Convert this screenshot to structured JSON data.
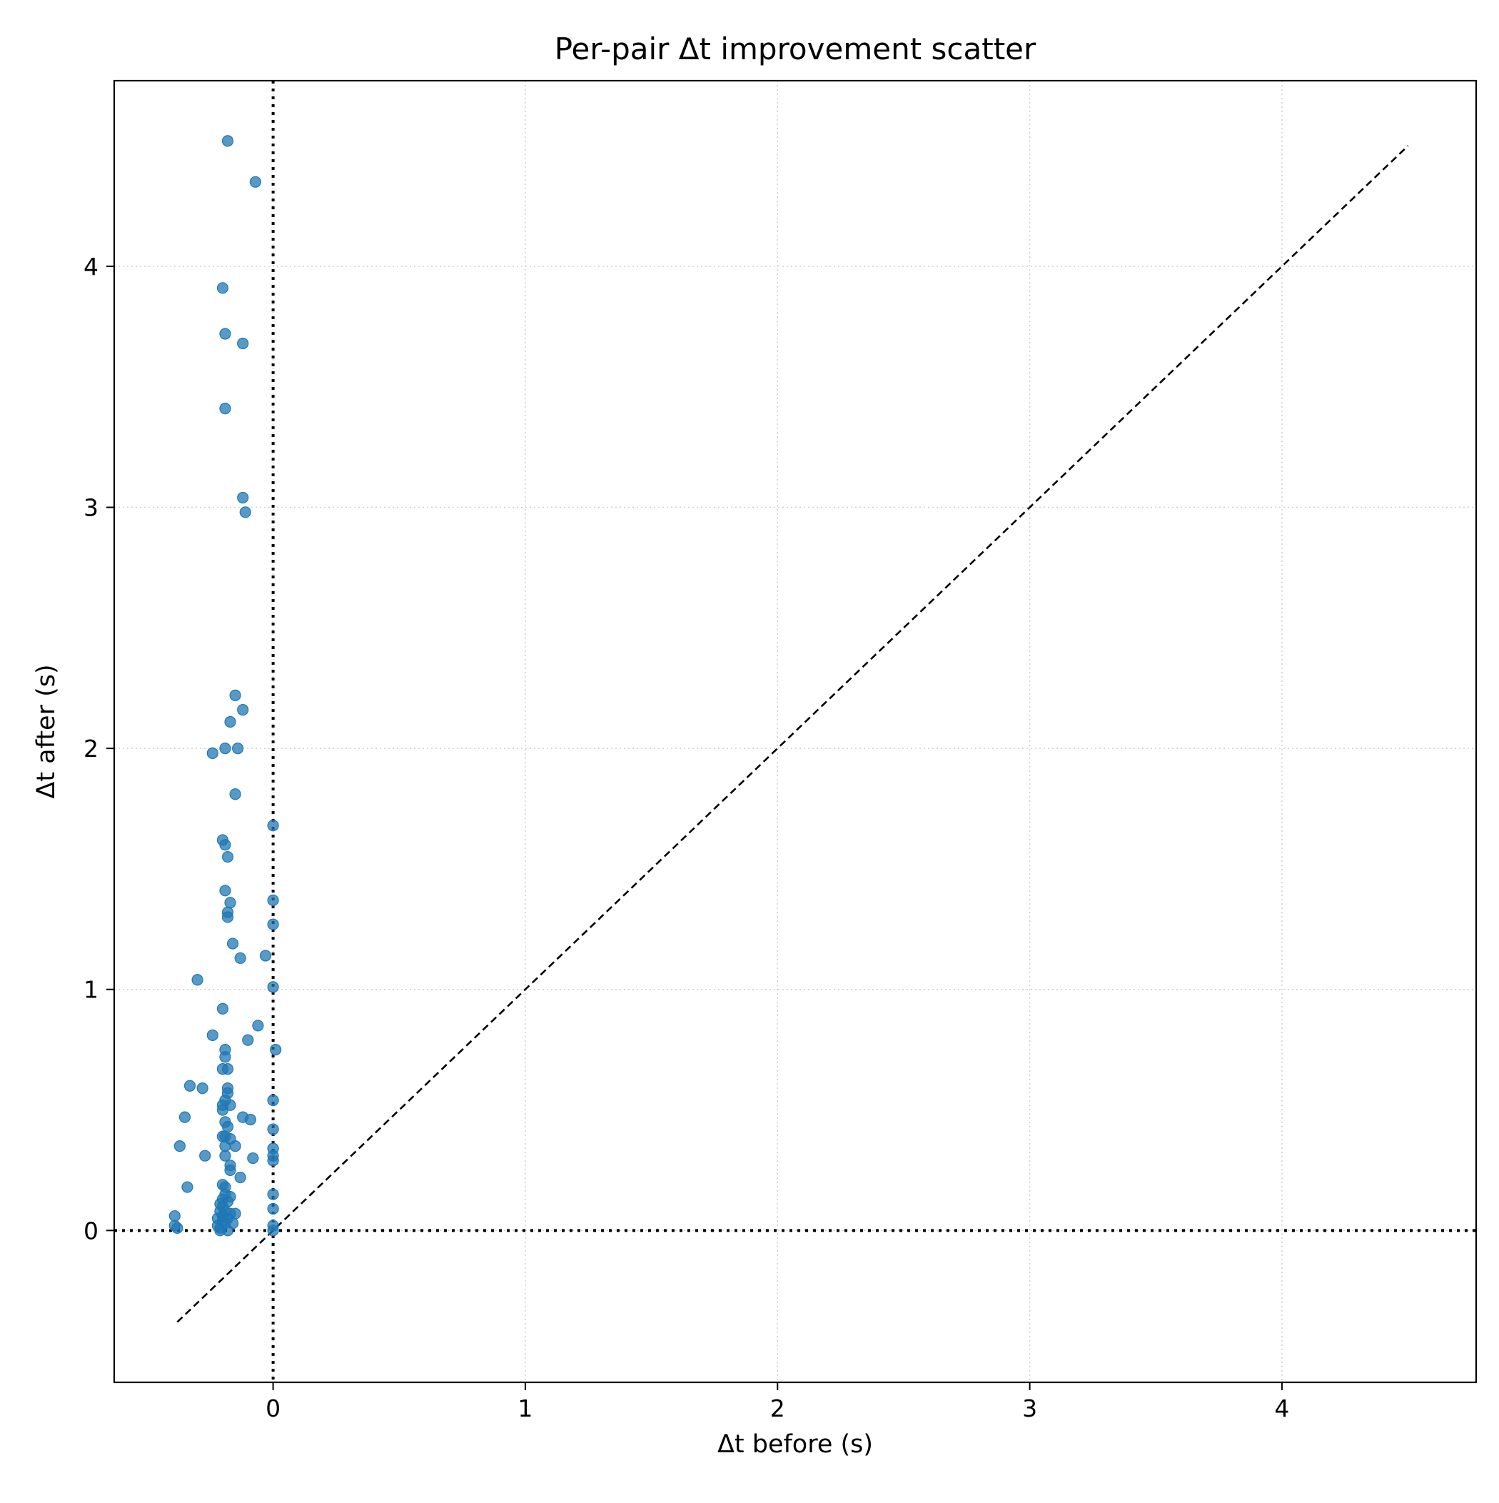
{
  "chart_data": {
    "type": "scatter",
    "title": "Per-pair Δt improvement scatter",
    "xlabel": "Δt before (s)",
    "ylabel": "Δt after (s)",
    "xlim": [
      -0.63,
      4.77
    ],
    "ylim": [
      -0.63,
      4.77
    ],
    "xticks": [
      0,
      1,
      2,
      3,
      4
    ],
    "yticks": [
      0,
      1,
      2,
      3,
      4
    ],
    "tick_labels_x": [
      "0",
      "1",
      "2",
      "3",
      "4"
    ],
    "tick_labels_y": [
      "0",
      "1",
      "2",
      "3",
      "4"
    ],
    "grid": true,
    "reference_lines": [
      {
        "kind": "diagonal",
        "style": "dashed",
        "from": -0.38,
        "to": 4.5
      },
      {
        "kind": "vertical",
        "style": "dotted",
        "x": 0
      },
      {
        "kind": "horizontal",
        "style": "dotted",
        "y": 0
      }
    ],
    "point_color": "#1f77b4",
    "points": [
      {
        "x": -0.18,
        "y": 4.52
      },
      {
        "x": -0.07,
        "y": 4.35
      },
      {
        "x": -0.2,
        "y": 3.91
      },
      {
        "x": -0.19,
        "y": 3.72
      },
      {
        "x": -0.12,
        "y": 3.68
      },
      {
        "x": -0.19,
        "y": 3.41
      },
      {
        "x": -0.12,
        "y": 3.04
      },
      {
        "x": -0.11,
        "y": 2.98
      },
      {
        "x": -0.15,
        "y": 2.22
      },
      {
        "x": -0.12,
        "y": 2.16
      },
      {
        "x": -0.17,
        "y": 2.11
      },
      {
        "x": -0.19,
        "y": 2.0
      },
      {
        "x": -0.14,
        "y": 2.0
      },
      {
        "x": -0.24,
        "y": 1.98
      },
      {
        "x": -0.15,
        "y": 1.81
      },
      {
        "x": 0.0,
        "y": 1.68
      },
      {
        "x": -0.2,
        "y": 1.62
      },
      {
        "x": -0.19,
        "y": 1.6
      },
      {
        "x": -0.18,
        "y": 1.55
      },
      {
        "x": -0.19,
        "y": 1.41
      },
      {
        "x": 0.0,
        "y": 1.37
      },
      {
        "x": -0.17,
        "y": 1.36
      },
      {
        "x": -0.18,
        "y": 1.32
      },
      {
        "x": -0.18,
        "y": 1.3
      },
      {
        "x": 0.0,
        "y": 1.27
      },
      {
        "x": -0.16,
        "y": 1.19
      },
      {
        "x": -0.03,
        "y": 1.14
      },
      {
        "x": -0.13,
        "y": 1.13
      },
      {
        "x": -0.3,
        "y": 1.04
      },
      {
        "x": 0.0,
        "y": 1.01
      },
      {
        "x": -0.2,
        "y": 0.92
      },
      {
        "x": -0.06,
        "y": 0.85
      },
      {
        "x": -0.24,
        "y": 0.81
      },
      {
        "x": -0.1,
        "y": 0.79
      },
      {
        "x": 0.01,
        "y": 0.75
      },
      {
        "x": -0.19,
        "y": 0.75
      },
      {
        "x": -0.19,
        "y": 0.72
      },
      {
        "x": -0.18,
        "y": 0.67
      },
      {
        "x": -0.2,
        "y": 0.67
      },
      {
        "x": -0.33,
        "y": 0.6
      },
      {
        "x": -0.28,
        "y": 0.59
      },
      {
        "x": -0.18,
        "y": 0.59
      },
      {
        "x": -0.18,
        "y": 0.57
      },
      {
        "x": 0.0,
        "y": 0.54
      },
      {
        "x": -0.19,
        "y": 0.54
      },
      {
        "x": -0.17,
        "y": 0.52
      },
      {
        "x": -0.2,
        "y": 0.52
      },
      {
        "x": -0.2,
        "y": 0.5
      },
      {
        "x": -0.35,
        "y": 0.47
      },
      {
        "x": -0.12,
        "y": 0.47
      },
      {
        "x": -0.09,
        "y": 0.46
      },
      {
        "x": -0.19,
        "y": 0.45
      },
      {
        "x": -0.18,
        "y": 0.43
      },
      {
        "x": 0.0,
        "y": 0.42
      },
      {
        "x": -0.19,
        "y": 0.39
      },
      {
        "x": -0.2,
        "y": 0.39
      },
      {
        "x": -0.17,
        "y": 0.38
      },
      {
        "x": -0.37,
        "y": 0.35
      },
      {
        "x": -0.19,
        "y": 0.35
      },
      {
        "x": -0.15,
        "y": 0.35
      },
      {
        "x": 0.0,
        "y": 0.34
      },
      {
        "x": 0.0,
        "y": 0.31
      },
      {
        "x": -0.27,
        "y": 0.31
      },
      {
        "x": -0.19,
        "y": 0.31
      },
      {
        "x": -0.08,
        "y": 0.3
      },
      {
        "x": 0.0,
        "y": 0.29
      },
      {
        "x": -0.17,
        "y": 0.27
      },
      {
        "x": -0.17,
        "y": 0.25
      },
      {
        "x": -0.13,
        "y": 0.22
      },
      {
        "x": -0.2,
        "y": 0.19
      },
      {
        "x": -0.19,
        "y": 0.18
      },
      {
        "x": -0.34,
        "y": 0.18
      },
      {
        "x": 0.0,
        "y": 0.15
      },
      {
        "x": -0.19,
        "y": 0.15
      },
      {
        "x": -0.17,
        "y": 0.14
      },
      {
        "x": -0.2,
        "y": 0.13
      },
      {
        "x": -0.18,
        "y": 0.12
      },
      {
        "x": -0.21,
        "y": 0.11
      },
      {
        "x": -0.2,
        "y": 0.1
      },
      {
        "x": 0.0,
        "y": 0.09
      },
      {
        "x": -0.21,
        "y": 0.08
      },
      {
        "x": -0.19,
        "y": 0.08
      },
      {
        "x": -0.17,
        "y": 0.07
      },
      {
        "x": -0.15,
        "y": 0.07
      },
      {
        "x": -0.2,
        "y": 0.06
      },
      {
        "x": -0.39,
        "y": 0.06
      },
      {
        "x": -0.22,
        "y": 0.05
      },
      {
        "x": -0.18,
        "y": 0.05
      },
      {
        "x": -0.2,
        "y": 0.04
      },
      {
        "x": -0.19,
        "y": 0.03
      },
      {
        "x": -0.16,
        "y": 0.03
      },
      {
        "x": -0.39,
        "y": 0.02
      },
      {
        "x": -0.22,
        "y": 0.02
      },
      {
        "x": 0.0,
        "y": 0.02
      },
      {
        "x": -0.38,
        "y": 0.01
      },
      {
        "x": -0.21,
        "y": 0.01
      },
      {
        "x": -0.18,
        "y": 0.0
      },
      {
        "x": -0.21,
        "y": 0.0
      },
      {
        "x": 0.0,
        "y": 0.0
      }
    ]
  }
}
